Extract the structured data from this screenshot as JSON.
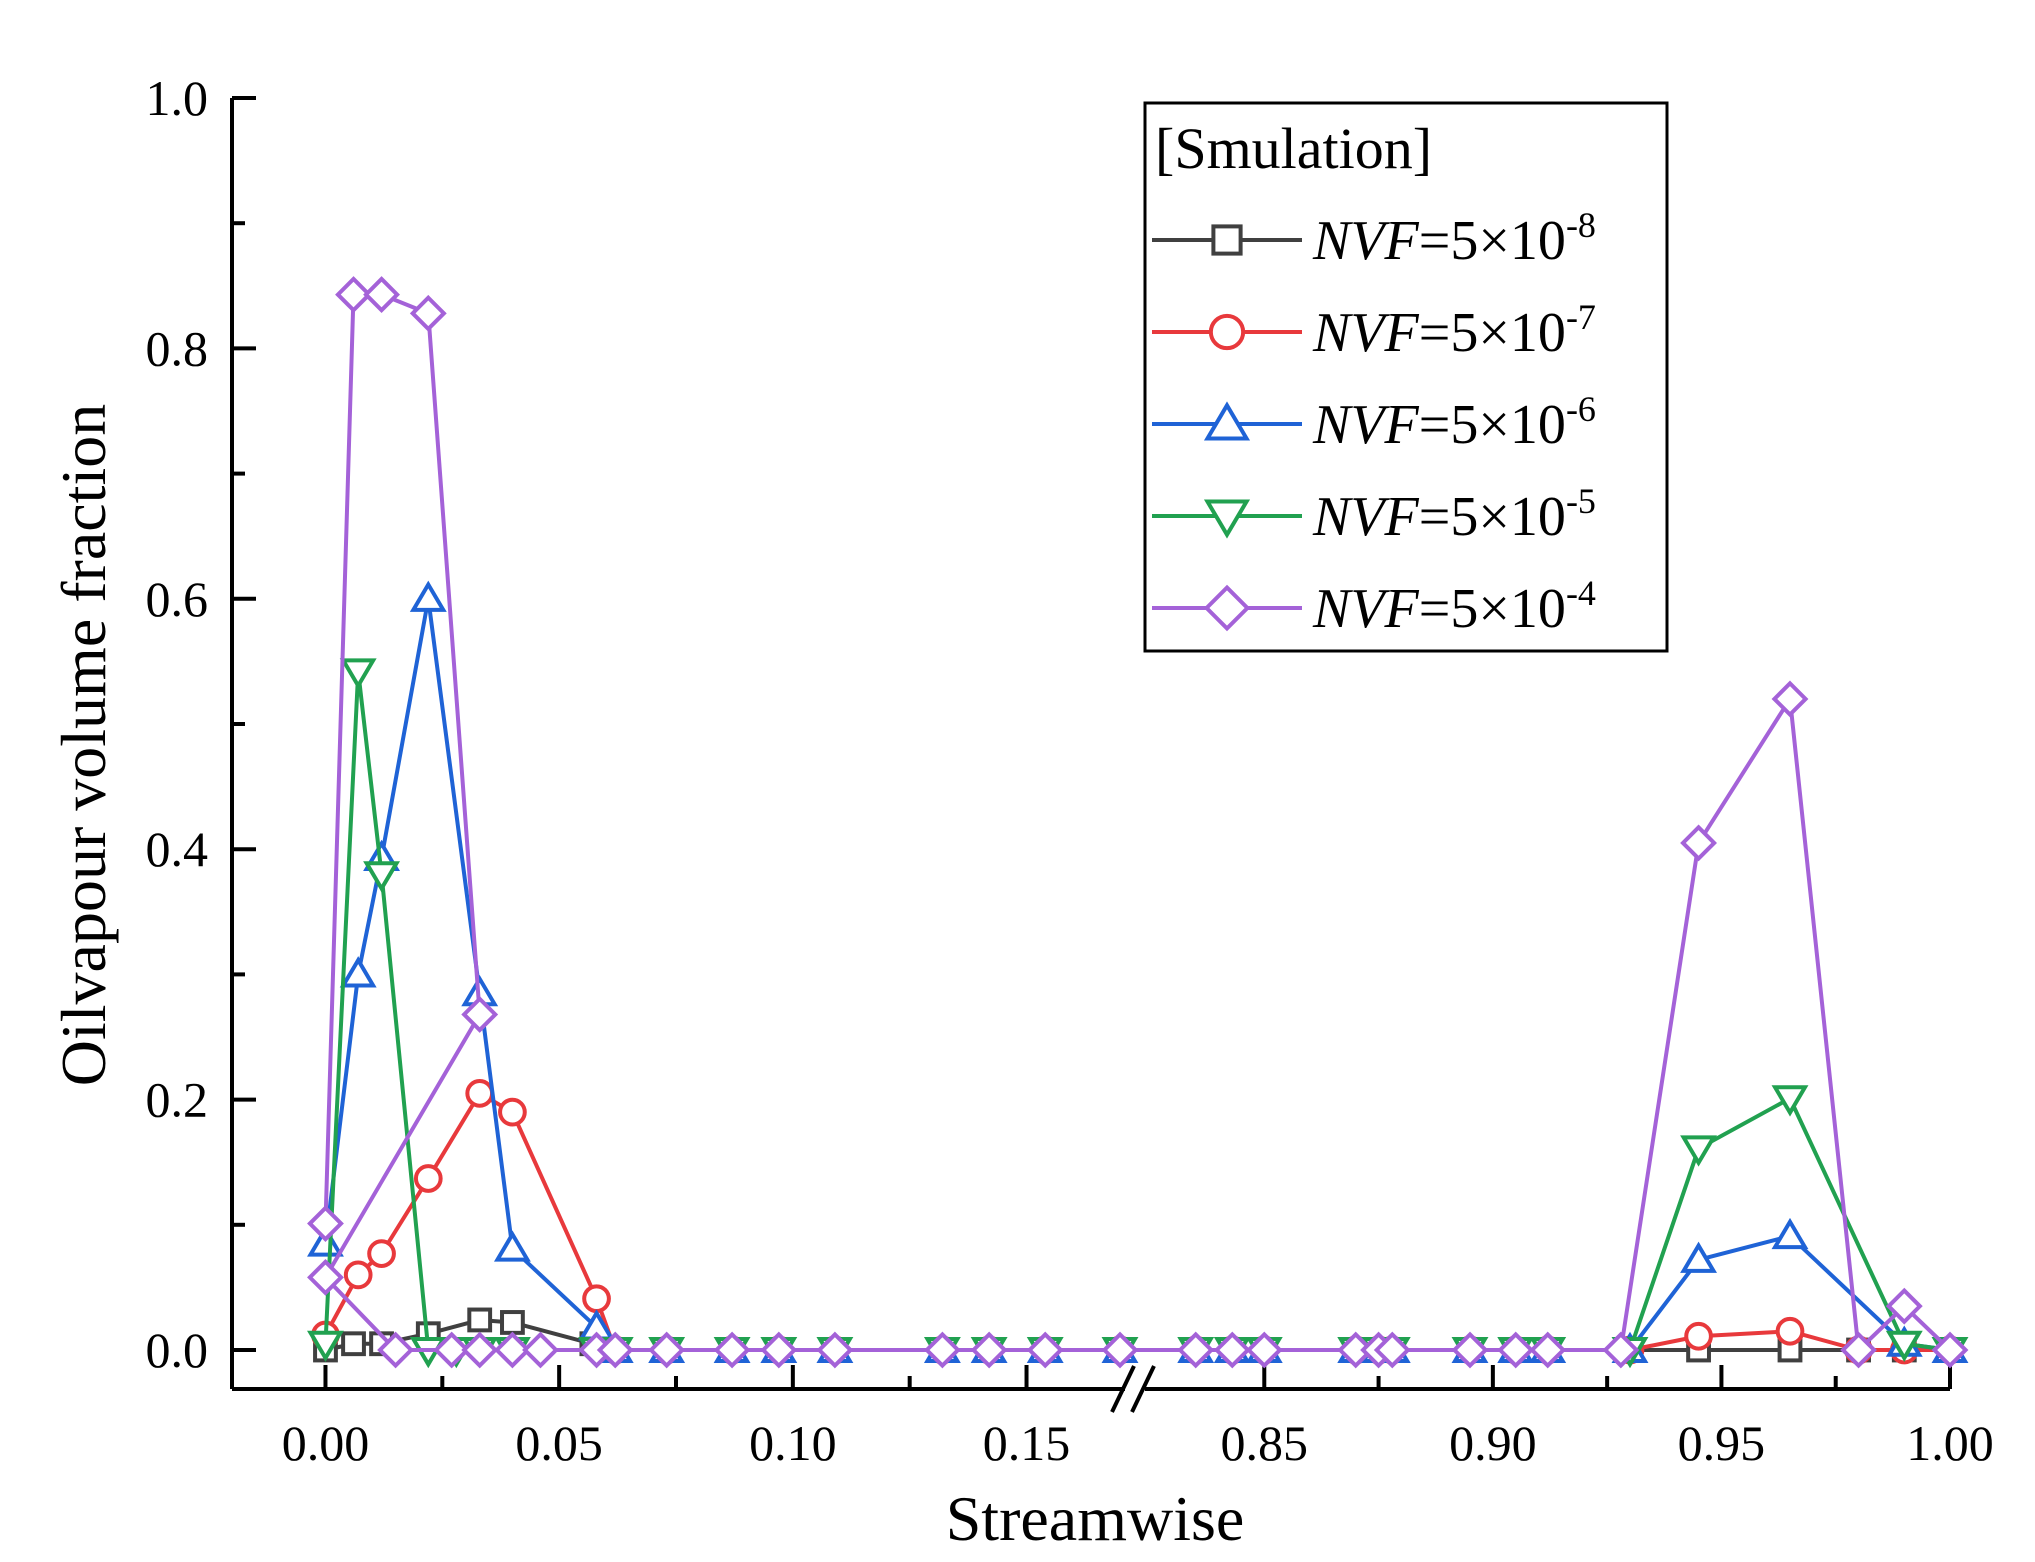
{
  "chart_data": {
    "type": "line",
    "title": "",
    "xlabel": "Streamwise",
    "ylabel": "Oilvapour volume fraction",
    "ylim": [
      0.0,
      1.0
    ],
    "yticks": [
      "0.0",
      "0.2",
      "0.4",
      "0.6",
      "0.8",
      "1.0"
    ],
    "x_break": {
      "left_range": [
        -0.02,
        0.17
      ],
      "right_range": [
        0.825,
        1.0
      ]
    },
    "xticks": [
      "0.00",
      "0.05",
      "0.10",
      "0.15",
      "0.85",
      "0.90",
      "0.95",
      "1.00"
    ],
    "legend": {
      "title": "[Smulation]",
      "position": "top-right"
    },
    "series": [
      {
        "name": "NVF=5×10-8",
        "label_prefix": "NVF",
        "label_mid": "=5×10",
        "label_exp": "-8",
        "color": "#404040",
        "marker": "square",
        "x": [
          0.0,
          0.006,
          0.012,
          0.022,
          0.033,
          0.04,
          0.057,
          0.062,
          0.073,
          0.087,
          0.097,
          0.109,
          0.132,
          0.142,
          0.154,
          0.17,
          0.835,
          0.843,
          0.85,
          0.87,
          0.875,
          0.878,
          0.895,
          0.905,
          0.912,
          0.93,
          0.945,
          0.965,
          0.98,
          0.99,
          1.0
        ],
        "y": [
          0.0,
          0.005,
          0.005,
          0.013,
          0.024,
          0.022,
          0.005,
          0.0,
          0.0,
          0.0,
          0.0,
          0.0,
          0.0,
          0.0,
          0.0,
          0.0,
          0.0,
          0.0,
          0.0,
          0.0,
          0.0,
          0.0,
          0.0,
          0.0,
          0.0,
          0.0,
          0.0,
          0.0,
          0.0,
          0.0,
          0.0
        ]
      },
      {
        "name": "NVF=5×10-7",
        "label_prefix": "NVF",
        "label_mid": "=5×10",
        "label_exp": "-7",
        "color": "#e8393c",
        "marker": "circle",
        "x": [
          0.0,
          0.007,
          0.012,
          0.022,
          0.033,
          0.04,
          0.058,
          0.062,
          0.073,
          0.087,
          0.097,
          0.109,
          0.132,
          0.142,
          0.154,
          0.17,
          0.835,
          0.843,
          0.85,
          0.87,
          0.875,
          0.878,
          0.895,
          0.905,
          0.912,
          0.93,
          0.945,
          0.965,
          0.98,
          0.99,
          1.0
        ],
        "y": [
          0.012,
          0.06,
          0.077,
          0.137,
          0.205,
          0.19,
          0.041,
          0.0,
          0.0,
          0.0,
          0.0,
          0.0,
          0.0,
          0.0,
          0.0,
          0.0,
          0.0,
          0.0,
          0.0,
          0.0,
          0.0,
          0.0,
          0.0,
          0.0,
          0.0,
          0.0,
          0.011,
          0.015,
          0.0,
          0.0,
          0.0
        ]
      },
      {
        "name": "NVF=5×10-6",
        "label_prefix": "NVF",
        "label_mid": "=5×10",
        "label_exp": "-6",
        "color": "#1f63d6",
        "marker": "triangle-up",
        "x": [
          0.0,
          0.007,
          0.012,
          0.022,
          0.033,
          0.04,
          0.058,
          0.062,
          0.073,
          0.087,
          0.097,
          0.109,
          0.132,
          0.142,
          0.154,
          0.17,
          0.835,
          0.843,
          0.85,
          0.87,
          0.875,
          0.878,
          0.895,
          0.905,
          0.912,
          0.93,
          0.945,
          0.965,
          0.99,
          1.0
        ],
        "y": [
          0.085,
          0.3,
          0.393,
          0.6,
          0.285,
          0.081,
          0.018,
          0.0,
          0.0,
          0.0,
          0.0,
          0.0,
          0.0,
          0.0,
          0.0,
          0.0,
          0.0,
          0.0,
          0.0,
          0.0,
          0.0,
          0.0,
          0.0,
          0.0,
          0.0,
          0.0,
          0.072,
          0.091,
          0.005,
          0.0
        ]
      },
      {
        "name": "NVF=5×10-5",
        "label_prefix": "NVF",
        "label_mid": "=5×10",
        "label_exp": "-5",
        "color": "#21a150",
        "marker": "triangle-down",
        "x": [
          0.0,
          0.007,
          0.012,
          0.022,
          0.028,
          0.033,
          0.04,
          0.058,
          0.062,
          0.073,
          0.087,
          0.097,
          0.109,
          0.132,
          0.142,
          0.154,
          0.17,
          0.835,
          0.843,
          0.85,
          0.87,
          0.875,
          0.878,
          0.895,
          0.905,
          0.912,
          0.93,
          0.945,
          0.965,
          0.99,
          1.0
        ],
        "y": [
          0.005,
          0.542,
          0.38,
          0.0,
          0.0,
          0.0,
          0.0,
          0.0,
          0.0,
          0.0,
          0.0,
          0.0,
          0.0,
          0.0,
          0.0,
          0.0,
          0.0,
          0.0,
          0.0,
          0.0,
          0.0,
          0.0,
          0.0,
          0.0,
          0.0,
          0.0,
          0.0,
          0.161,
          0.201,
          0.005,
          0.0
        ]
      },
      {
        "name": "NVF=5×10-4",
        "label_prefix": "NVF",
        "label_mid": "=5×10",
        "label_exp": "-4",
        "color": "#a462d8",
        "marker": "diamond",
        "x": [
          0.0,
          0.006,
          0.012,
          0.022,
          0.033,
          0.0,
          0.015,
          0.027,
          0.033,
          0.04,
          0.046,
          0.058,
          0.062,
          0.073,
          0.087,
          0.097,
          0.109,
          0.132,
          0.142,
          0.154,
          0.17,
          0.835,
          0.843,
          0.85,
          0.87,
          0.875,
          0.878,
          0.895,
          0.905,
          0.912,
          0.928,
          0.945,
          0.965,
          0.98,
          0.99,
          1.0
        ],
        "y": [
          0.101,
          0.843,
          0.843,
          0.828,
          0.268,
          0.058,
          0.0,
          0.0,
          0.0,
          0.0,
          0.0,
          0.0,
          0.0,
          0.0,
          0.0,
          0.0,
          0.0,
          0.0,
          0.0,
          0.0,
          0.0,
          0.0,
          0.0,
          0.0,
          0.0,
          0.0,
          0.0,
          0.0,
          0.0,
          0.0,
          0.0,
          0.405,
          0.52,
          0.0,
          0.035,
          0.0
        ]
      }
    ]
  }
}
